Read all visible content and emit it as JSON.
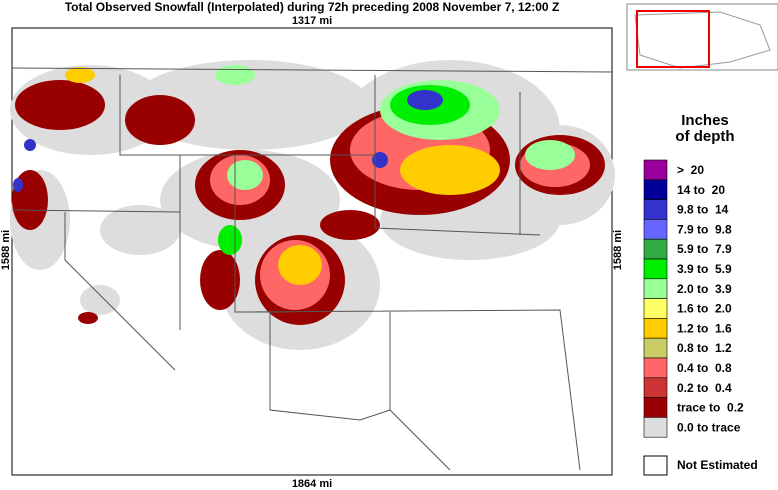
{
  "header": {
    "title": "Total Observed Snowfall (Interpolated) during 72h preceding 2008 November 7, 12:00 Z"
  },
  "map": {
    "top_width": "1317 mi",
    "bottom_width": "1864 mi",
    "left_height": "1588 mi",
    "right_height": "1588 mi"
  },
  "legend": {
    "title_line1": "Inches",
    "title_line2": "of depth",
    "items": [
      {
        "label": ">  20",
        "color": "#990099"
      },
      {
        "label": "14 to  20",
        "color": "#000099"
      },
      {
        "label": "9.8 to  14",
        "color": "#3333cc"
      },
      {
        "label": "7.9 to  9.8",
        "color": "#6666ff"
      },
      {
        "label": "5.9 to  7.9",
        "color": "#33aa44"
      },
      {
        "label": "3.9 to  5.9",
        "color": "#00ee00"
      },
      {
        "label": "2.0 to  3.9",
        "color": "#99ff99"
      },
      {
        "label": "1.6 to  2.0",
        "color": "#ffff66"
      },
      {
        "label": "1.2 to  1.6",
        "color": "#ffcc00"
      },
      {
        "label": "0.8 to  1.2",
        "color": "#cccc66"
      },
      {
        "label": "0.4 to  0.8",
        "color": "#ff6666"
      },
      {
        "label": "0.2 to  0.4",
        "color": "#cc3333"
      },
      {
        "label": "trace to  0.2",
        "color": "#990000"
      },
      {
        "label": "0.0 to trace",
        "color": "#dddddd"
      }
    ],
    "not_estimated": "Not Estimated"
  }
}
